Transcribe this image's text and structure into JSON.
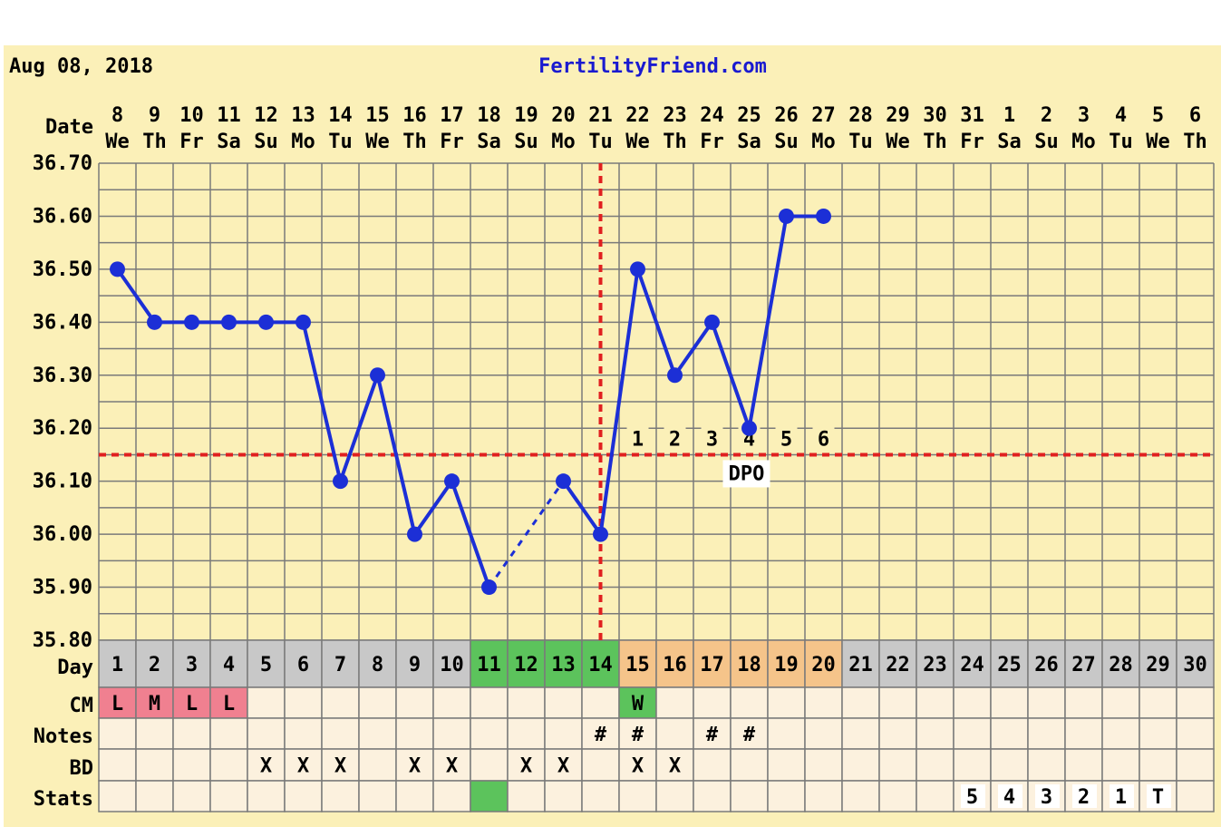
{
  "header": {
    "date": "Aug 08, 2018",
    "site": "FertilityFriend.com"
  },
  "row_labels": {
    "date": "Date",
    "day": "Day",
    "cm": "CM",
    "notes": "Notes",
    "bd": "BD",
    "stats": "Stats"
  },
  "columns": {
    "dates": [
      "8",
      "9",
      "10",
      "11",
      "12",
      "13",
      "14",
      "15",
      "16",
      "17",
      "18",
      "19",
      "20",
      "21",
      "22",
      "23",
      "24",
      "25",
      "26",
      "27",
      "28",
      "29",
      "30",
      "31",
      "1",
      "2",
      "3",
      "4",
      "5",
      "6"
    ],
    "weekdays": [
      "We",
      "Th",
      "Fr",
      "Sa",
      "Su",
      "Mo",
      "Tu",
      "We",
      "Th",
      "Fr",
      "Sa",
      "Su",
      "Mo",
      "Tu",
      "We",
      "Th",
      "Fr",
      "Sa",
      "Su",
      "Mo",
      "Tu",
      "We",
      "Th",
      "Fr",
      "Sa",
      "Su",
      "Mo",
      "Tu",
      "We",
      "Th"
    ],
    "days": [
      "1",
      "2",
      "3",
      "4",
      "5",
      "6",
      "7",
      "8",
      "9",
      "10",
      "11",
      "12",
      "13",
      "14",
      "15",
      "16",
      "17",
      "18",
      "19",
      "20",
      "21",
      "22",
      "23",
      "24",
      "25",
      "26",
      "27",
      "28",
      "29",
      "30"
    ],
    "day_colors": [
      "#c8c8c8",
      "#c8c8c8",
      "#c8c8c8",
      "#c8c8c8",
      "#c8c8c8",
      "#c8c8c8",
      "#c8c8c8",
      "#c8c8c8",
      "#c8c8c8",
      "#c8c8c8",
      "#5cc35c",
      "#5cc35c",
      "#5cc35c",
      "#5cc35c",
      "#f5c48a",
      "#f5c48a",
      "#f5c48a",
      "#f5c48a",
      "#f5c48a",
      "#f5c48a",
      "#c8c8c8",
      "#c8c8c8",
      "#c8c8c8",
      "#c8c8c8",
      "#c8c8c8",
      "#c8c8c8",
      "#c8c8c8",
      "#c8c8c8",
      "#c8c8c8",
      "#c8c8c8"
    ],
    "cm": [
      "L",
      "M",
      "L",
      "L",
      "",
      "",
      "",
      "",
      "",
      "",
      "",
      "",
      "",
      "",
      "W",
      "",
      "",
      "",
      "",
      "",
      "",
      "",
      "",
      "",
      "",
      "",
      "",
      "",
      "",
      ""
    ],
    "cm_colors": [
      "#f08090",
      "#f08090",
      "#f08090",
      "#f08090",
      "",
      "",
      "",
      "",
      "",
      "",
      "",
      "",
      "",
      "",
      "#5cc35c",
      "",
      "",
      "",
      "",
      "",
      "",
      "",
      "",
      "",
      "",
      "",
      "",
      "",
      "",
      ""
    ],
    "notes": [
      "",
      "",
      "",
      "",
      "",
      "",
      "",
      "",
      "",
      "",
      "",
      "",
      "",
      "#",
      "#",
      "",
      "#",
      "#",
      "",
      "",
      "",
      "",
      "",
      "",
      "",
      "",
      "",
      "",
      "",
      ""
    ],
    "bd": [
      "",
      "",
      "",
      "",
      "X",
      "X",
      "X",
      "",
      "X",
      "X",
      "",
      "X",
      "X",
      "",
      "X",
      "X",
      "",
      "",
      "",
      "",
      "",
      "",
      "",
      "",
      "",
      "",
      "",
      "",
      "",
      ""
    ],
    "stats": [
      "",
      "",
      "",
      "",
      "",
      "",
      "",
      "",
      "",
      "",
      "",
      "",
      "",
      "",
      "",
      "",
      "",
      "",
      "",
      "",
      "",
      "",
      "",
      "5",
      "4",
      "3",
      "2",
      "1",
      "T",
      ""
    ],
    "stats_colors": [
      "",
      "",
      "",
      "",
      "",
      "",
      "",
      "",
      "",
      "",
      "#5cc35c",
      "",
      "",
      "",
      "",
      "",
      "",
      "",
      "",
      "",
      "",
      "",
      "",
      "",
      "",
      "",
      "",
      "",
      "",
      ""
    ]
  },
  "colors": {
    "plot_bg": "#fbf0b8",
    "frame_bg": "#fbf0b8",
    "line": "#1c2fd6",
    "threshold": "#e02020",
    "site_link": "#1a1ad0",
    "cell_bg": "#fcf1de"
  },
  "chart_data": {
    "type": "line",
    "yticks": [
      "36.70",
      "36.60",
      "36.50",
      "36.40",
      "36.30",
      "36.20",
      "36.10",
      "36.00",
      "35.90",
      "35.80"
    ],
    "ylim": [
      35.8,
      36.7
    ],
    "series": [
      {
        "values": [
          36.5,
          36.4,
          36.4,
          36.4,
          36.4,
          36.4,
          36.1,
          36.3,
          36.0,
          36.1,
          35.9,
          null,
          36.1,
          36.0,
          36.5,
          36.3,
          36.4,
          36.2,
          36.6,
          36.6,
          null,
          null,
          null,
          null,
          null,
          null,
          null,
          null,
          null,
          null
        ],
        "dashed_segments": [
          [
            10,
            12
          ]
        ]
      }
    ],
    "coverline": 36.15,
    "ovulation_day": 14,
    "dpo_labels": [
      "1",
      "2",
      "3",
      "4",
      "5",
      "6"
    ],
    "dpo_text": "DPO"
  }
}
